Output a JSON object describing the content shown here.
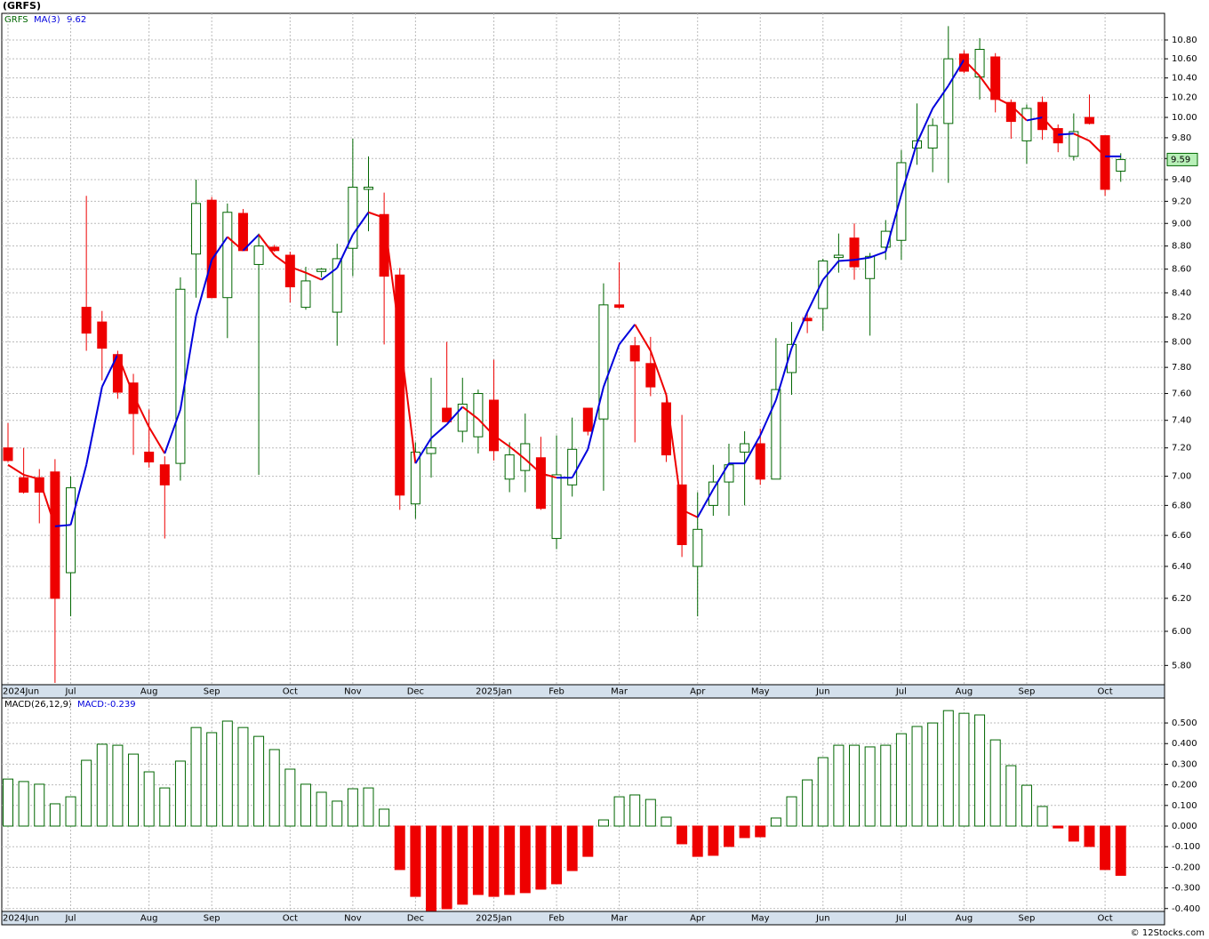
{
  "chart_data": [
    {
      "type": "candlestick",
      "title": "(GRFS)",
      "log_scale": true,
      "grid": true,
      "ylim": [
        5.69,
        11.09
      ],
      "yticks": [
        {
          "value": 5.8,
          "label": "5.80"
        },
        {
          "value": 6.0,
          "label": "6.00"
        },
        {
          "value": 6.2,
          "label": "6.20"
        },
        {
          "value": 6.4,
          "label": "6.40"
        },
        {
          "value": 6.6,
          "label": "6.60"
        },
        {
          "value": 6.8,
          "label": "6.80"
        },
        {
          "value": 7.0,
          "label": "7.00"
        },
        {
          "value": 7.2,
          "label": "7.20"
        },
        {
          "value": 7.4,
          "label": "7.40"
        },
        {
          "value": 7.6,
          "label": "7.60"
        },
        {
          "value": 7.8,
          "label": "7.80"
        },
        {
          "value": 8.0,
          "label": "8.00"
        },
        {
          "value": 8.2,
          "label": "8.20"
        },
        {
          "value": 8.4,
          "label": "8.40"
        },
        {
          "value": 8.6,
          "label": "8.60"
        },
        {
          "value": 8.8,
          "label": "8.80"
        },
        {
          "value": 9.0,
          "label": "9.00"
        },
        {
          "value": 9.2,
          "label": "9.20"
        },
        {
          "value": 9.4,
          "label": "9.40"
        },
        {
          "value": 9.6,
          "label": "9.60"
        },
        {
          "value": 9.8,
          "label": "9.80"
        },
        {
          "value": 10.0,
          "label": "10.00"
        },
        {
          "value": 10.2,
          "label": "10.20"
        },
        {
          "value": 10.4,
          "label": "10.40"
        },
        {
          "value": 10.6,
          "label": "10.60"
        },
        {
          "value": 10.8,
          "label": "10.80"
        }
      ],
      "categories": [
        "2024Jun",
        null,
        null,
        null,
        "Jul",
        null,
        null,
        null,
        null,
        "Aug",
        null,
        null,
        null,
        "Sep",
        null,
        null,
        null,
        null,
        "Oct",
        null,
        null,
        null,
        "Nov",
        null,
        null,
        null,
        "Dec",
        null,
        null,
        null,
        null,
        "2025Jan",
        null,
        null,
        null,
        "Feb",
        null,
        null,
        null,
        "Mar",
        null,
        null,
        null,
        null,
        "Apr",
        null,
        null,
        null,
        "May",
        null,
        null,
        null,
        "Jun",
        null,
        null,
        null,
        null,
        "Jul",
        null,
        null,
        null,
        "Aug",
        null,
        null,
        null,
        "Sep",
        null,
        null,
        null,
        null,
        "Oct",
        null
      ],
      "series": [
        {
          "name": "GRFS",
          "up_color": "#006600",
          "down_color": "#ee0000",
          "open": [
            7.2,
            6.99,
            6.99,
            7.03,
            6.36,
            8.28,
            8.16,
            7.9,
            7.68,
            7.17,
            7.08,
            7.09,
            8.73,
            9.21,
            8.36,
            9.09,
            8.64,
            8.79,
            8.72,
            8.28,
            8.58,
            8.24,
            8.78,
            9.31,
            9.08,
            8.55,
            6.81,
            7.16,
            7.49,
            7.32,
            7.28,
            7.55,
            6.98,
            7.04,
            7.13,
            6.58,
            6.94,
            7.49,
            7.41,
            8.3,
            7.97,
            7.83,
            7.53,
            6.94,
            6.4,
            6.8,
            6.96,
            7.17,
            7.23,
            6.98,
            7.76,
            8.19,
            8.27,
            8.7,
            8.87,
            8.52,
            8.79,
            8.85,
            9.7,
            9.7,
            9.94,
            10.65,
            10.41,
            10.62,
            10.15,
            9.77,
            10.15,
            9.89,
            9.62,
            10.0,
            9.82,
            9.48
          ],
          "high": [
            7.38,
            7.2,
            7.05,
            7.12,
            7.0,
            9.25,
            8.25,
            7.93,
            7.75,
            7.48,
            7.14,
            8.53,
            9.4,
            9.24,
            9.18,
            9.13,
            8.91,
            8.81,
            8.75,
            8.62,
            8.61,
            8.82,
            9.79,
            9.62,
            9.28,
            8.61,
            7.24,
            7.72,
            8.0,
            7.72,
            7.63,
            7.86,
            7.24,
            7.45,
            7.28,
            7.29,
            7.42,
            7.49,
            8.48,
            8.66,
            8.04,
            8.04,
            7.6,
            7.44,
            6.89,
            7.08,
            7.23,
            7.32,
            7.34,
            8.03,
            8.16,
            8.25,
            8.69,
            8.91,
            9.0,
            8.74,
            9.03,
            9.68,
            10.14,
            9.99,
            10.95,
            10.69,
            10.82,
            10.66,
            10.18,
            10.13,
            10.21,
            9.93,
            10.04,
            10.23,
            9.82,
            9.65
          ],
          "low": [
            7.1,
            6.88,
            6.68,
            5.7,
            6.09,
            7.93,
            7.7,
            7.56,
            7.15,
            7.06,
            6.58,
            6.97,
            8.36,
            8.36,
            8.03,
            8.76,
            7.01,
            8.75,
            8.32,
            8.26,
            8.53,
            7.97,
            8.54,
            8.93,
            7.98,
            6.77,
            6.71,
            6.99,
            7.39,
            7.24,
            7.16,
            7.11,
            6.89,
            6.89,
            6.77,
            6.51,
            6.86,
            7.29,
            6.9,
            8.27,
            7.24,
            7.58,
            7.1,
            6.46,
            6.09,
            6.73,
            6.73,
            6.8,
            6.94,
            6.98,
            7.59,
            8.07,
            8.09,
            8.57,
            8.51,
            8.05,
            8.68,
            8.68,
            9.54,
            9.47,
            9.37,
            10.45,
            10.18,
            10.05,
            9.79,
            9.55,
            9.78,
            9.66,
            9.58,
            9.93,
            9.25,
            9.38
          ],
          "close": [
            7.11,
            6.89,
            6.89,
            6.2,
            6.92,
            8.07,
            7.95,
            7.61,
            7.45,
            7.1,
            6.94,
            8.43,
            9.18,
            8.36,
            9.1,
            8.76,
            8.8,
            8.76,
            8.45,
            8.5,
            8.6,
            8.69,
            9.33,
            9.33,
            8.54,
            6.87,
            7.17,
            7.2,
            7.39,
            7.52,
            7.6,
            7.18,
            7.15,
            7.23,
            6.78,
            7.01,
            7.19,
            7.32,
            8.3,
            8.28,
            7.85,
            7.65,
            7.15,
            6.54,
            6.64,
            6.96,
            7.08,
            7.23,
            6.98,
            7.63,
            7.98,
            8.17,
            8.67,
            8.72,
            8.62,
            8.71,
            8.93,
            9.56,
            9.77,
            9.92,
            10.6,
            10.47,
            10.7,
            10.18,
            9.96,
            10.09,
            9.88,
            9.75,
            9.86,
            9.94,
            9.31,
            9.59
          ]
        },
        {
          "name": "MA(3)",
          "up_color": "#0000dd",
          "down_color": "#ee0000",
          "values": [
            7.08,
            7.01,
            6.98,
            6.66,
            6.67,
            7.08,
            7.65,
            7.9,
            7.59,
            7.35,
            7.16,
            7.48,
            8.21,
            8.68,
            8.88,
            8.76,
            8.9,
            8.72,
            8.62,
            8.57,
            8.51,
            8.61,
            8.9,
            9.1,
            9.05,
            8.04,
            7.09,
            7.27,
            7.37,
            7.5,
            7.41,
            7.29,
            7.21,
            7.12,
            7.02,
            6.99,
            6.99,
            7.19,
            7.65,
            7.98,
            8.14,
            7.93,
            7.59,
            6.77,
            6.72,
            6.91,
            7.09,
            7.09,
            7.29,
            7.55,
            7.95,
            8.24,
            8.51,
            8.67,
            8.68,
            8.7,
            8.75,
            9.26,
            9.75,
            10.09,
            10.32,
            10.59,
            10.42,
            10.2,
            10.12,
            9.97,
            10.0,
            9.83,
            9.84,
            9.77,
            9.62,
            9.62
          ]
        }
      ]
    },
    {
      "type": "bar",
      "title": "MACD(26,12,9)",
      "current_label": "MACD:-0.239",
      "grid": true,
      "up_color": "#006600",
      "down_color": "#ee0000",
      "footer": "© 12Stocks.com",
      "ylim": [
        -0.414,
        0.621
      ],
      "yticks": [
        {
          "value": -0.4,
          "label": "-0.400"
        },
        {
          "value": -0.3,
          "label": "-0.300"
        },
        {
          "value": -0.2,
          "label": "-0.200"
        },
        {
          "value": -0.1,
          "label": "-0.100"
        },
        {
          "value": 0,
          "label": "0.000"
        },
        {
          "value": 0.1,
          "label": "0.100"
        },
        {
          "value": 0.2,
          "label": "0.200"
        },
        {
          "value": 0.3,
          "label": "0.300"
        },
        {
          "value": 0.4,
          "label": "0.400"
        },
        {
          "value": 0.5,
          "label": "0.500"
        }
      ],
      "categories": [
        "2024Jun",
        null,
        null,
        null,
        "Jul",
        null,
        null,
        null,
        null,
        "Aug",
        null,
        null,
        null,
        "Sep",
        null,
        null,
        null,
        null,
        "Oct",
        null,
        null,
        null,
        "Nov",
        null,
        null,
        null,
        "Dec",
        null,
        null,
        null,
        null,
        "2025Jan",
        null,
        null,
        null,
        "Feb",
        null,
        null,
        null,
        "Mar",
        null,
        null,
        null,
        null,
        "Apr",
        null,
        null,
        null,
        "May",
        null,
        null,
        null,
        "Jun",
        null,
        null,
        null,
        null,
        "Jul",
        null,
        null,
        null,
        "Aug",
        null,
        null,
        null,
        "Sep",
        null,
        null,
        null,
        null,
        "Oct",
        null
      ],
      "values": [
        0.228,
        0.216,
        0.203,
        0.108,
        0.142,
        0.319,
        0.397,
        0.392,
        0.349,
        0.263,
        0.185,
        0.315,
        0.478,
        0.453,
        0.509,
        0.478,
        0.435,
        0.371,
        0.276,
        0.203,
        0.164,
        0.121,
        0.181,
        0.185,
        0.082,
        -0.211,
        -0.341,
        -0.41,
        -0.401,
        -0.379,
        -0.332,
        -0.341,
        -0.332,
        -0.323,
        -0.306,
        -0.28,
        -0.216,
        -0.147,
        0.03,
        0.142,
        0.151,
        0.129,
        0.043,
        -0.086,
        -0.147,
        -0.142,
        -0.099,
        -0.056,
        -0.052,
        0.039,
        0.142,
        0.224,
        0.332,
        0.392,
        0.392,
        0.384,
        0.392,
        0.448,
        0.483,
        0.5,
        0.56,
        0.547,
        0.539,
        0.418,
        0.293,
        0.198,
        0.095,
        -0.009,
        -0.073,
        -0.099,
        -0.211,
        -0.239
      ]
    }
  ]
}
